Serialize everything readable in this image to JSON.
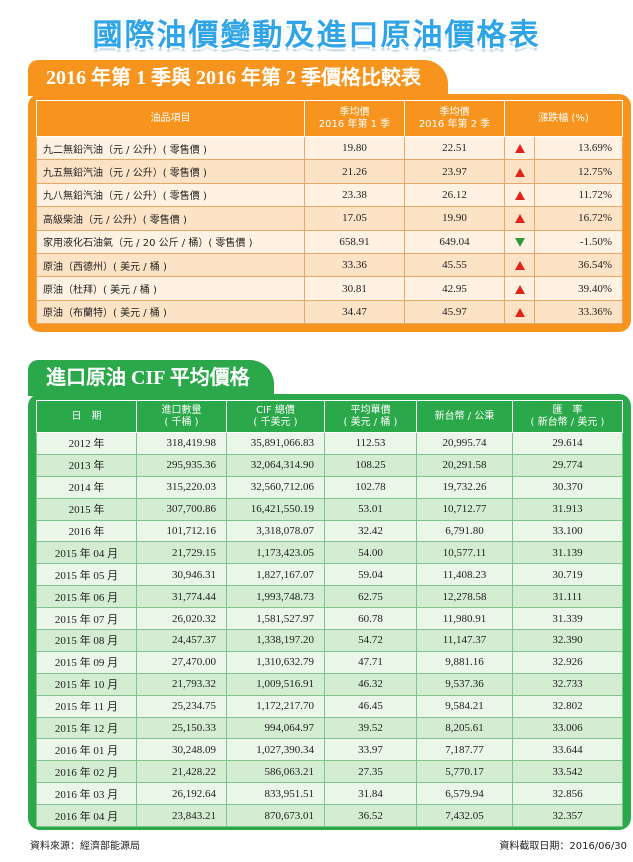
{
  "title": "國際油價變動及進口原油價格表",
  "comparison": {
    "heading": "2016 年第 1 季與 2016 年第 2 季價格比較表",
    "headers": {
      "item": "油品項目",
      "q1_line1": "季均價",
      "q1_line2": "2016 年第 1 季",
      "q2_line1": "季均價",
      "q2_line2": "2016 年第 2 季",
      "change": "漲跌幅 (%)"
    },
    "rows": [
      {
        "name": "九二無鉛汽油（元 / 公升）( 零售價 )",
        "q1": "19.80",
        "q2": "22.51",
        "dir": "up",
        "pct": "13.69%"
      },
      {
        "name": "九五無鉛汽油（元 / 公升）( 零售價 )",
        "q1": "21.26",
        "q2": "23.97",
        "dir": "up",
        "pct": "12.75%"
      },
      {
        "name": "九八無鉛汽油（元 / 公升）( 零售價 )",
        "q1": "23.38",
        "q2": "26.12",
        "dir": "up",
        "pct": "11.72%"
      },
      {
        "name": "高級柴油（元 / 公升）( 零售價 )",
        "q1": "17.05",
        "q2": "19.90",
        "dir": "up",
        "pct": "16.72%"
      },
      {
        "name": "家用液化石油氣（元 / 20 公斤 / 桶）( 零售價 )",
        "q1": "658.91",
        "q2": "649.04",
        "dir": "down",
        "pct": "-1.50%"
      },
      {
        "name": "原油（西德州）( 美元 / 桶 )",
        "q1": "33.36",
        "q2": "45.55",
        "dir": "up",
        "pct": "36.54%"
      },
      {
        "name": "原油（杜拜）( 美元 / 桶 )",
        "q1": "30.81",
        "q2": "42.95",
        "dir": "up",
        "pct": "39.40%"
      },
      {
        "name": "原油（布蘭特）( 美元 / 桶 )",
        "q1": "34.47",
        "q2": "45.97",
        "dir": "up",
        "pct": "33.36%"
      }
    ]
  },
  "cif": {
    "heading": "進口原油 CIF 平均價格",
    "headers": {
      "date": "日　期",
      "qty_line1": "進口數量",
      "qty_line2": "( 千桶 )",
      "total_line1": "CIF 總價",
      "total_line2": "( 千美元 )",
      "unit_line1": "平均單價",
      "unit_line2": "( 美元 / 桶 )",
      "twd": "新台幣 / 公秉",
      "rate_line1": "匯　率",
      "rate_line2": "( 新台幣 / 美元 )"
    },
    "rows": [
      {
        "date": "2012 年",
        "qty": "318,419.98",
        "total": "35,891,066.83",
        "unit": "112.53",
        "twd": "20,995.74",
        "rate": "29.614"
      },
      {
        "date": "2013 年",
        "qty": "295,935.36",
        "total": "32,064,314.90",
        "unit": "108.25",
        "twd": "20,291.58",
        "rate": "29.774"
      },
      {
        "date": "2014 年",
        "qty": "315,220.03",
        "total": "32,560,712.06",
        "unit": "102.78",
        "twd": "19,732.26",
        "rate": "30.370"
      },
      {
        "date": "2015 年",
        "qty": "307,700.86",
        "total": "16,421,550.19",
        "unit": "53.01",
        "twd": "10,712.77",
        "rate": "31.913"
      },
      {
        "date": "2016 年",
        "qty": "101,712.16",
        "total": "3,318,078.07",
        "unit": "32.42",
        "twd": "6,791.80",
        "rate": "33.100"
      },
      {
        "date": "2015 年 04 月",
        "qty": "21,729.15",
        "total": "1,173,423.05",
        "unit": "54.00",
        "twd": "10,577.11",
        "rate": "31.139"
      },
      {
        "date": "2015 年 05 月",
        "qty": "30,946.31",
        "total": "1,827,167.07",
        "unit": "59.04",
        "twd": "11,408.23",
        "rate": "30.719"
      },
      {
        "date": "2015 年 06 月",
        "qty": "31,774.44",
        "total": "1,993,748.73",
        "unit": "62.75",
        "twd": "12,278.58",
        "rate": "31.111"
      },
      {
        "date": "2015 年 07 月",
        "qty": "26,020.32",
        "total": "1,581,527.97",
        "unit": "60.78",
        "twd": "11,980.91",
        "rate": "31.339"
      },
      {
        "date": "2015 年 08 月",
        "qty": "24,457.37",
        "total": "1,338,197.20",
        "unit": "54.72",
        "twd": "11,147.37",
        "rate": "32.390"
      },
      {
        "date": "2015 年 09 月",
        "qty": "27,470.00",
        "total": "1,310,632.79",
        "unit": "47.71",
        "twd": "9,881.16",
        "rate": "32.926"
      },
      {
        "date": "2015 年 10 月",
        "qty": "21,793.32",
        "total": "1,009,516.91",
        "unit": "46.32",
        "twd": "9,537.36",
        "rate": "32.733"
      },
      {
        "date": "2015 年 11 月",
        "qty": "25,234.75",
        "total": "1,172,217.70",
        "unit": "46.45",
        "twd": "9,584.21",
        "rate": "32.802"
      },
      {
        "date": "2015 年 12 月",
        "qty": "25,150.33",
        "total": "994,064.97",
        "unit": "39.52",
        "twd": "8,205.61",
        "rate": "33.006"
      },
      {
        "date": "2016 年 01 月",
        "qty": "30,248.09",
        "total": "1,027,390.34",
        "unit": "33.97",
        "twd": "7,187.77",
        "rate": "33.644"
      },
      {
        "date": "2016 年 02 月",
        "qty": "21,428.22",
        "total": "586,063.21",
        "unit": "27.35",
        "twd": "5,770.17",
        "rate": "33.542"
      },
      {
        "date": "2016 年 03 月",
        "qty": "26,192.64",
        "total": "833,951.51",
        "unit": "31.84",
        "twd": "6,579.94",
        "rate": "32.856"
      },
      {
        "date": "2016 年 04 月",
        "qty": "23,843.21",
        "total": "870,673.01",
        "unit": "36.52",
        "twd": "7,432.05",
        "rate": "32.357"
      }
    ]
  },
  "footer": {
    "source": "資料來源：經濟部能源局",
    "date": "資料截取日期：2016/06/30"
  },
  "colors": {
    "accent_orange": "#f7941d",
    "accent_green": "#2aa84a",
    "title_blue": "#2fa4e7",
    "up": "#e2231a",
    "down": "#2e9a3c"
  },
  "icons": {
    "up": "up-arrow-icon",
    "down": "down-arrow-icon"
  }
}
